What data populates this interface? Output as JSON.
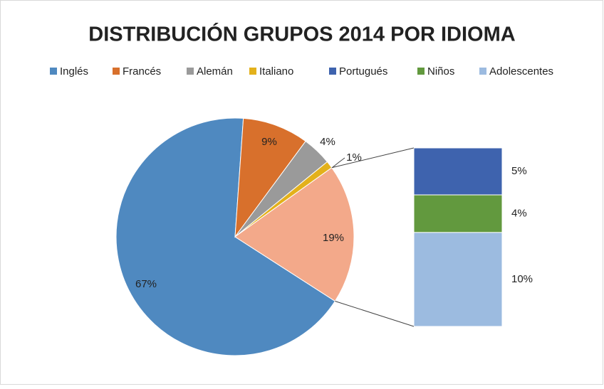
{
  "chart_data": {
    "type": "bar_of_pie",
    "title": "DISTRIBUCIÓN GRUPOS 2014 POR IDIOMA",
    "categories": [
      "Inglés",
      "Francés",
      "Alemán",
      "Italiano",
      "Portugués",
      "Niños",
      "Adolescentes"
    ],
    "values": [
      67,
      9,
      4,
      1,
      5,
      4,
      10
    ],
    "value_labels": [
      "67%",
      "9%",
      "4%",
      "1%",
      "5%",
      "4%",
      "10%"
    ],
    "colors": [
      "#4f89c0",
      "#d8702c",
      "#9a9a9a",
      "#e3b11b",
      "#3e63ae",
      "#62993e",
      "#9cbbe0"
    ],
    "secondary_count": 3,
    "other_value": 19,
    "other_value_label": "19%",
    "other_color": "#f3a98a",
    "legend": "top"
  }
}
